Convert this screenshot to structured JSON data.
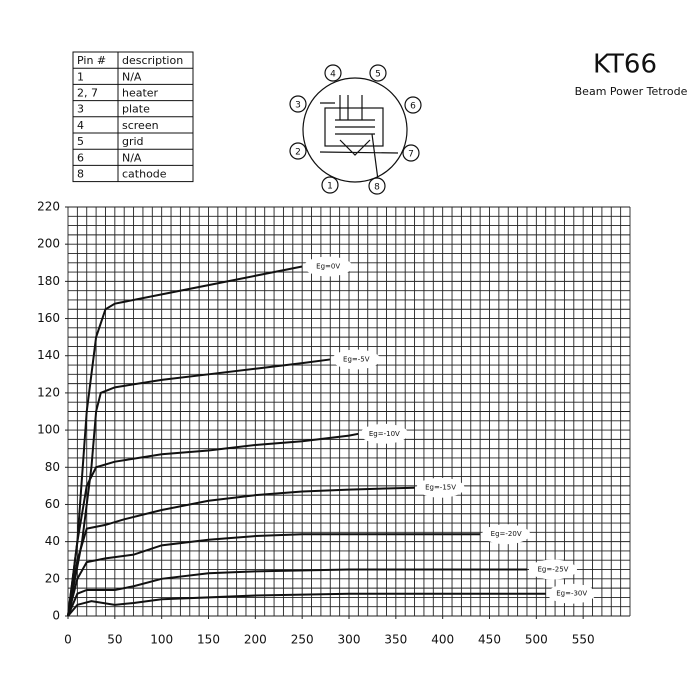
{
  "chart_data": {
    "type": "line",
    "title": "KT66",
    "subtitle": "Beam Power Tetrode",
    "xlim": [
      0,
      600
    ],
    "ylim": [
      0,
      220
    ],
    "xticks": [
      0,
      50,
      100,
      150,
      200,
      250,
      300,
      350,
      400,
      450,
      500,
      550
    ],
    "yticks": [
      0,
      20,
      40,
      60,
      80,
      100,
      120,
      140,
      160,
      180,
      200,
      220
    ],
    "grid": {
      "x_step": 10,
      "y_step": 5
    },
    "series": [
      {
        "name": "Eg=0V",
        "color": "#111111",
        "x": [
          0,
          10,
          20,
          30,
          40,
          50,
          100,
          150,
          200,
          250
        ],
        "values": [
          0,
          40,
          110,
          150,
          165,
          168,
          173,
          178,
          183,
          188
        ]
      },
      {
        "name": "Eg=-5V",
        "color": "#111111",
        "x": [
          0,
          15,
          25,
          30,
          35,
          50,
          100,
          150,
          200,
          250,
          280
        ],
        "values": [
          0,
          40,
          80,
          110,
          120,
          123,
          127,
          130,
          133,
          136,
          138
        ]
      },
      {
        "name": "Eg=-10V",
        "color": "#111111",
        "x": [
          0,
          10,
          20,
          30,
          50,
          100,
          150,
          200,
          250,
          300,
          310
        ],
        "values": [
          0,
          40,
          70,
          80,
          83,
          87,
          89,
          92,
          94,
          97,
          98
        ]
      },
      {
        "name": "Eg=-15V",
        "color": "#111111",
        "x": [
          0,
          10,
          20,
          40,
          60,
          100,
          150,
          200,
          250,
          300,
          370
        ],
        "values": [
          0,
          30,
          47,
          49,
          52,
          57,
          62,
          65,
          67,
          68,
          69
        ]
      },
      {
        "name": "Eg=-20V",
        "color": "#111111",
        "x": [
          0,
          10,
          20,
          40,
          70,
          100,
          150,
          200,
          250,
          300,
          440
        ],
        "values": [
          0,
          20,
          29,
          31,
          33,
          38,
          41,
          43,
          44,
          44,
          44
        ]
      },
      {
        "name": "Eg=-25V",
        "color": "#111111",
        "x": [
          0,
          10,
          20,
          50,
          70,
          100,
          150,
          200,
          300,
          400,
          490
        ],
        "values": [
          0,
          12,
          14,
          14,
          16,
          20,
          23,
          24,
          25,
          25,
          25
        ]
      },
      {
        "name": "Eg=-30V",
        "color": "#111111",
        "x": [
          0,
          10,
          25,
          50,
          70,
          100,
          200,
          300,
          400,
          510
        ],
        "values": [
          0,
          6,
          8,
          6,
          7,
          9,
          11,
          12,
          12,
          12
        ]
      }
    ]
  },
  "pin_table": {
    "header": [
      "Pin #",
      "description"
    ],
    "rows": [
      [
        "1",
        "N/A"
      ],
      [
        "2, 7",
        "heater"
      ],
      [
        "3",
        "plate"
      ],
      [
        "4",
        "screen"
      ],
      [
        "5",
        "grid"
      ],
      [
        "6",
        "N/A"
      ],
      [
        "8",
        "cathode"
      ]
    ]
  },
  "pin_diagram": {
    "pins": [
      "4",
      "5",
      "3",
      "6",
      "2",
      "7",
      "1",
      "8"
    ]
  }
}
